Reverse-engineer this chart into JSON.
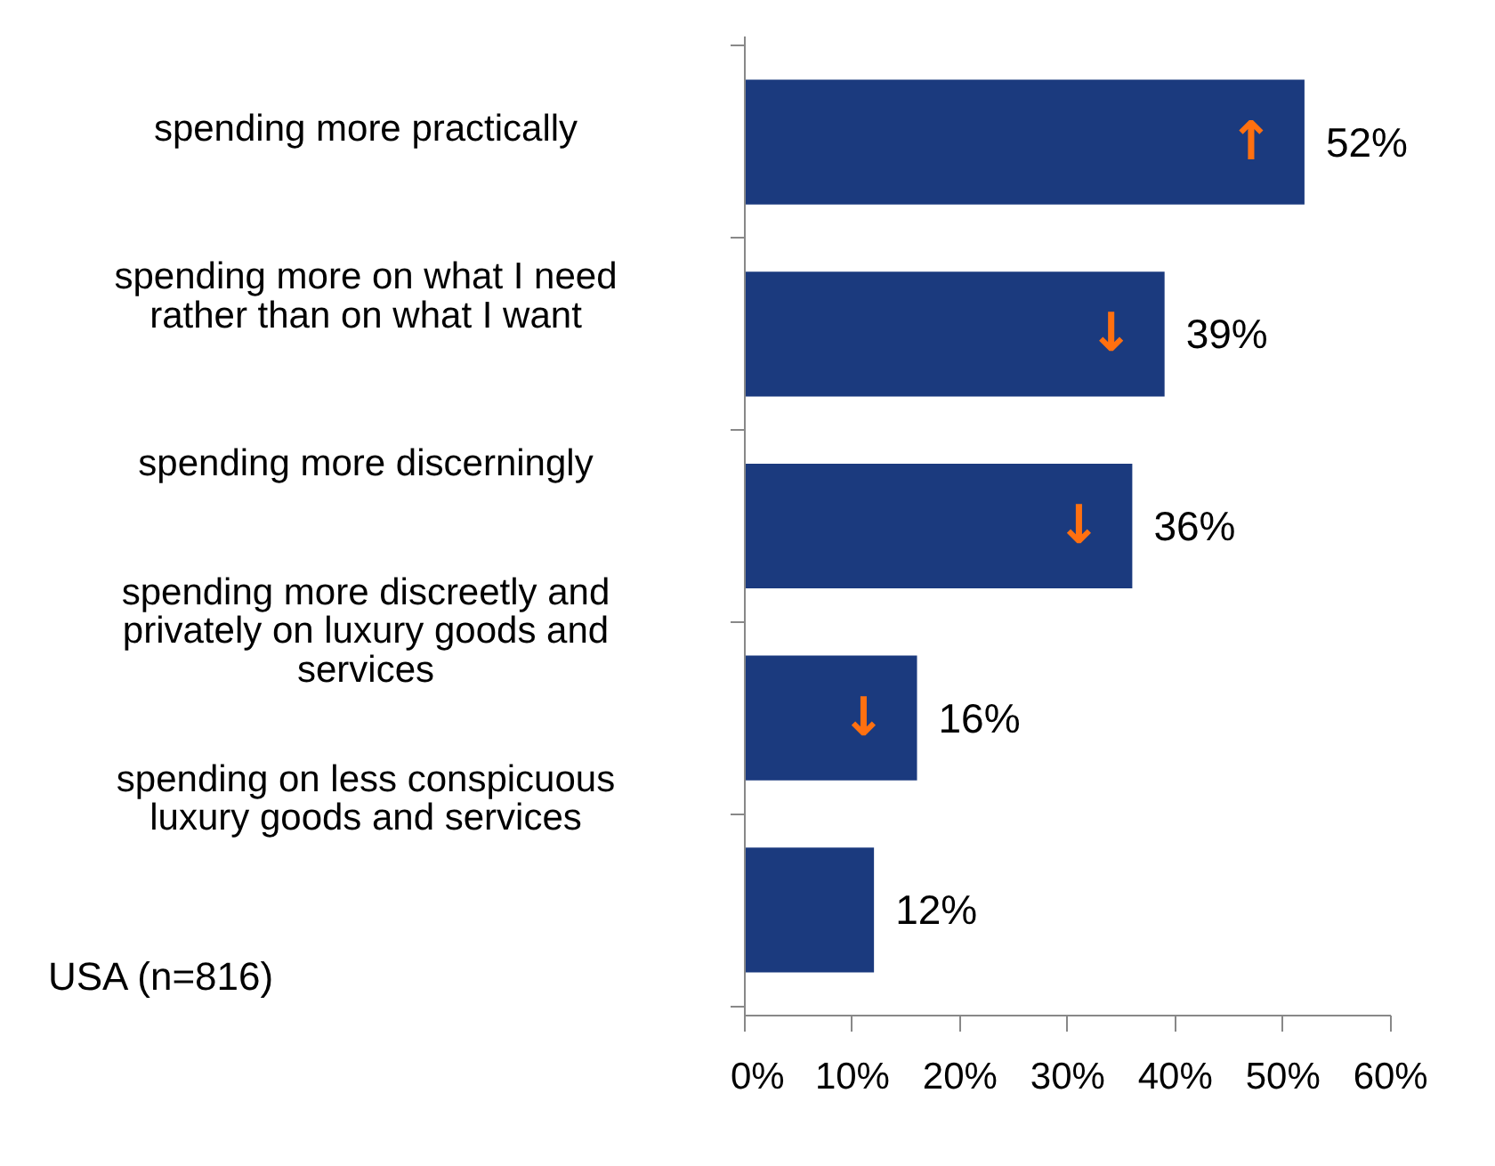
{
  "chart_data": {
    "type": "bar",
    "orientation": "horizontal",
    "categories": [
      "spending more practically",
      "spending more on what I need rather than on what I want",
      "spending more discerningly",
      "spending more discreetly and privately on luxury goods and services",
      "spending on less conspicuous luxury goods and services"
    ],
    "series": [
      {
        "name": "USA (n=816)",
        "color": "#1b3a7e",
        "values": [
          52,
          39,
          36,
          16,
          12
        ]
      }
    ],
    "value_labels": [
      "52%",
      "39%",
      "36%",
      "16%",
      "12%"
    ],
    "xlim": [
      0,
      60
    ],
    "xticks": [
      {
        "value": 0,
        "label": "0%"
      },
      {
        "value": 10,
        "label": "10%"
      },
      {
        "value": 20,
        "label": "20%"
      },
      {
        "value": 30,
        "label": "30%"
      },
      {
        "value": 40,
        "label": "40%"
      },
      {
        "value": 50,
        "label": "50%"
      },
      {
        "value": 60,
        "label": "60%"
      }
    ],
    "annotations": [
      "↑",
      "↓",
      "↓",
      "↓"
    ],
    "legend": "bottom left",
    "grid": false
  }
}
